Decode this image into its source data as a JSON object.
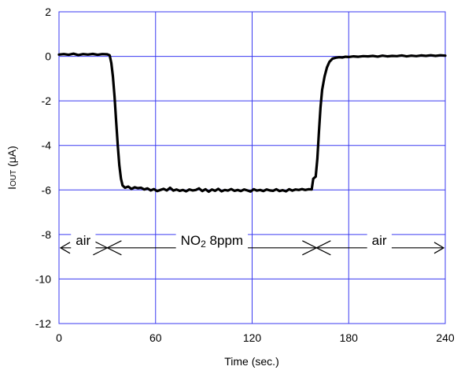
{
  "chart_data": {
    "type": "line",
    "title": "",
    "xlabel": "Time (sec.)",
    "ylabel": "IOUT (μA)",
    "ylabel_parts": [
      "I",
      "OUT",
      " (μA)"
    ],
    "xlim": [
      0,
      240
    ],
    "ylim": [
      -12,
      2
    ],
    "xticks": [
      0,
      60,
      120,
      180,
      240
    ],
    "yticks": [
      2,
      0,
      -2,
      -4,
      -6,
      -8,
      -10,
      -12
    ],
    "grid": true,
    "colors": {
      "grid": "#3a3af0",
      "line": "#000000",
      "frame": "#3a3af0"
    },
    "series": [
      {
        "values": [
          [
            0,
            0.08
          ],
          [
            3,
            0.1
          ],
          [
            6,
            0.07
          ],
          [
            9,
            0.12
          ],
          [
            12,
            0.06
          ],
          [
            15,
            0.1
          ],
          [
            18,
            0.08
          ],
          [
            21,
            0.11
          ],
          [
            24,
            0.07
          ],
          [
            27,
            0.1
          ],
          [
            30,
            0.09
          ],
          [
            31.5,
            0.05
          ],
          [
            32.5,
            -0.3
          ],
          [
            33.5,
            -0.9
          ],
          [
            34.5,
            -1.8
          ],
          [
            35.5,
            -2.9
          ],
          [
            36.5,
            -4.0
          ],
          [
            37.5,
            -4.9
          ],
          [
            38.5,
            -5.5
          ],
          [
            39.5,
            -5.8
          ],
          [
            41,
            -5.9
          ],
          [
            43,
            -5.85
          ],
          [
            45,
            -5.95
          ],
          [
            47,
            -5.88
          ],
          [
            49,
            -5.92
          ],
          [
            51,
            -5.9
          ],
          [
            53,
            -5.98
          ],
          [
            55,
            -5.93
          ],
          [
            57,
            -6.02
          ],
          [
            59,
            -5.96
          ],
          [
            61,
            -6.05
          ],
          [
            63,
            -6.0
          ],
          [
            65,
            -5.95
          ],
          [
            67,
            -6.02
          ],
          [
            69,
            -5.9
          ],
          [
            71,
            -6.03
          ],
          [
            73,
            -5.98
          ],
          [
            75,
            -6.04
          ],
          [
            77,
            -6.0
          ],
          [
            79,
            -6.06
          ],
          [
            81,
            -5.98
          ],
          [
            83,
            -6.02
          ],
          [
            85,
            -6.0
          ],
          [
            87,
            -5.93
          ],
          [
            89,
            -6.05
          ],
          [
            91,
            -5.97
          ],
          [
            93,
            -6.08
          ],
          [
            95,
            -5.98
          ],
          [
            97,
            -6.04
          ],
          [
            99,
            -5.95
          ],
          [
            101,
            -6.06
          ],
          [
            103,
            -6.0
          ],
          [
            105,
            -6.03
          ],
          [
            107,
            -5.96
          ],
          [
            109,
            -6.04
          ],
          [
            111,
            -6.0
          ],
          [
            113,
            -6.05
          ],
          [
            115,
            -5.98
          ],
          [
            117,
            -6.02
          ],
          [
            119,
            -6.07
          ],
          [
            121,
            -5.97
          ],
          [
            123,
            -6.03
          ],
          [
            125,
            -6.0
          ],
          [
            127,
            -6.05
          ],
          [
            129,
            -5.98
          ],
          [
            131,
            -6.02
          ],
          [
            133,
            -6.04
          ],
          [
            135,
            -5.97
          ],
          [
            137,
            -6.05
          ],
          [
            139,
            -6.01
          ],
          [
            141,
            -6.06
          ],
          [
            143,
            -5.97
          ],
          [
            145,
            -6.03
          ],
          [
            147,
            -5.98
          ],
          [
            149,
            -6.0
          ],
          [
            151,
            -5.96
          ],
          [
            153,
            -6.0
          ],
          [
            155,
            -5.97
          ],
          [
            157,
            -5.98
          ],
          [
            158,
            -5.5
          ],
          [
            159.5,
            -5.4
          ],
          [
            160.5,
            -4.6
          ],
          [
            161.5,
            -3.4
          ],
          [
            162.5,
            -2.3
          ],
          [
            163.5,
            -1.5
          ],
          [
            165,
            -0.9
          ],
          [
            166.5,
            -0.5
          ],
          [
            168,
            -0.25
          ],
          [
            170,
            -0.1
          ],
          [
            172,
            -0.06
          ],
          [
            174,
            -0.04
          ],
          [
            176,
            -0.05
          ],
          [
            178,
            -0.02
          ],
          [
            180,
            -0.03
          ],
          [
            183,
            0.0
          ],
          [
            186,
            -0.02
          ],
          [
            189,
            0.01
          ],
          [
            192,
            0.0
          ],
          [
            195,
            0.02
          ],
          [
            198,
            -0.01
          ],
          [
            201,
            0.03
          ],
          [
            204,
            0.0
          ],
          [
            207,
            0.02
          ],
          [
            210,
            0.01
          ],
          [
            213,
            0.04
          ],
          [
            216,
            0.0
          ],
          [
            219,
            0.03
          ],
          [
            222,
            0.01
          ],
          [
            225,
            0.04
          ],
          [
            228,
            0.02
          ],
          [
            231,
            0.05
          ],
          [
            234,
            0.02
          ],
          [
            237,
            0.05
          ],
          [
            240,
            0.03
          ]
        ]
      }
    ],
    "annotations": {
      "y_level": -8.6,
      "phases": [
        {
          "label": "air",
          "x_start": 0,
          "x_end": 30,
          "label_x": 15
        },
        {
          "label_parts": [
            "NO",
            "2",
            " 8ppm"
          ],
          "x_start": 30,
          "x_end": 160,
          "label_x": 95
        },
        {
          "label": "air",
          "x_start": 160,
          "x_end": 240,
          "label_x": 199
        }
      ],
      "marker_x": [
        30,
        160
      ]
    }
  }
}
